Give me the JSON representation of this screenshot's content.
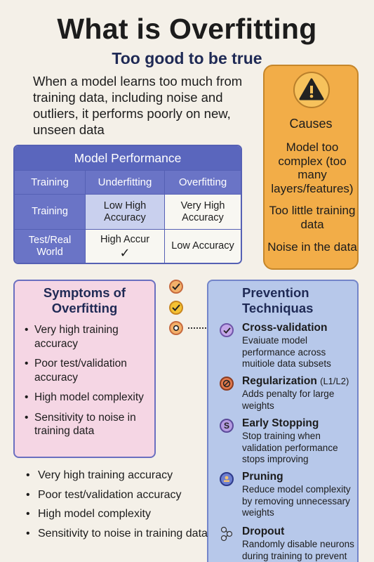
{
  "title": "What is Overfitting",
  "subtitle": "Too good to be true",
  "intro": "When a model learns too much from training data, including noise and outliers, it performs poorly on new, unseen data",
  "performance": {
    "title": "Model Performance",
    "headers": [
      "Training",
      "Underfitting",
      "Overfitting"
    ],
    "rows": [
      {
        "label": "Training",
        "underfitting": "Low High Accuracy",
        "overfitting": "Very High Accuracy"
      },
      {
        "label": "Test/Real World",
        "underfitting": "High Accur",
        "overfitting": "Low Accuracy"
      }
    ],
    "check_glyph": "✓"
  },
  "causes": {
    "icon": "warning-icon",
    "title": "Causes",
    "items": [
      "Model too complex (too many layers/features)",
      "Too little training data",
      "Noise in the data"
    ]
  },
  "symptoms": {
    "title": "Symptoms of Overfitting",
    "items": [
      "Very high training accuracy",
      "Poor test/validation accuracy",
      "High model complexity",
      "Sensitivity to noise in training data"
    ]
  },
  "bottom_list": [
    "Very high training accuracy",
    "Poor test/validation accuracy",
    "High model complexity",
    "Sensitivity to noise in training data"
  ],
  "prevention": {
    "title": "Prevention Techniquas",
    "items": [
      {
        "name": "Cross-validation",
        "note": "",
        "desc": "Evaiuate model performance across muitiole data subsets",
        "icon": "check-circle-icon"
      },
      {
        "name": "Regularization",
        "note": "(L1/L2)",
        "desc": "Adds penalty for large weights",
        "icon": "no-entry-icon"
      },
      {
        "name": "Early Stopping",
        "note": "",
        "desc": "Stop training when validation performance stops improving",
        "icon": "stop-icon"
      },
      {
        "name": "Pruning",
        "note": "",
        "desc": "Reduce model complexity by removing unnecessary weights",
        "icon": "pruning-icon"
      },
      {
        "name": "Dropout",
        "note": "",
        "desc": "Randomly disable neurons during training to prevent",
        "icon": "network-icon"
      }
    ]
  },
  "colors": {
    "table_header": "#5a66bd",
    "causes_bg": "#f2ad48",
    "symptoms_bg": "#f5d6e4",
    "prevention_bg": "#b7c8ea"
  }
}
